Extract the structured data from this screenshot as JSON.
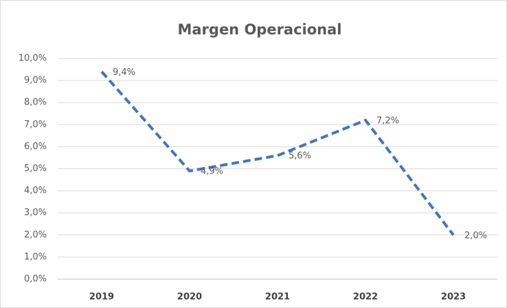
{
  "chart_data": {
    "type": "line",
    "title": "Margen Operacional",
    "categories": [
      "2019",
      "2020",
      "2021",
      "2022",
      "2023"
    ],
    "series": [
      {
        "name": "Margen Operacional",
        "color": "#4472c4",
        "values": [
          9.4,
          4.9,
          5.6,
          7.2,
          2.0
        ],
        "value_labels": [
          "9,4%",
          "4,9%",
          "5,6%",
          "7,2%",
          "2,0%"
        ]
      }
    ],
    "ylim": [
      0,
      10
    ],
    "yticks": [
      {
        "value": 0,
        "label": "0,0%"
      },
      {
        "value": 1,
        "label": "1,0%"
      },
      {
        "value": 2,
        "label": "2,0%"
      },
      {
        "value": 3,
        "label": "3,0%"
      },
      {
        "value": 4,
        "label": "4,0%"
      },
      {
        "value": 5,
        "label": "5,0%"
      },
      {
        "value": 6,
        "label": "6,0%"
      },
      {
        "value": 7,
        "label": "7,0%"
      },
      {
        "value": 8,
        "label": "8,0%"
      },
      {
        "value": 9,
        "label": "9,0%"
      },
      {
        "value": 10,
        "label": "10,0%"
      }
    ],
    "grid": true
  }
}
